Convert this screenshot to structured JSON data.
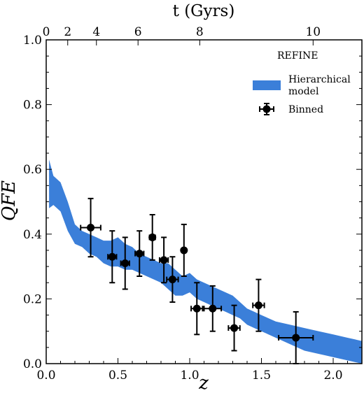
{
  "chart_data": {
    "type": "scatter",
    "title": "",
    "xlabel": "z",
    "ylabel": "QFE",
    "top_xlabel": "t (Gyrs)",
    "xlim": [
      0.0,
      2.2
    ],
    "ylim": [
      0.0,
      1.0
    ],
    "x_ticks": [
      "0.0",
      "0.5",
      "1.0",
      "1.5",
      "2.0"
    ],
    "x_tick_values": [
      0.0,
      0.5,
      1.0,
      1.5,
      2.0
    ],
    "y_ticks": [
      "0.0",
      "0.2",
      "0.4",
      "0.6",
      "0.8",
      "1.0"
    ],
    "y_tick_values": [
      0.0,
      0.2,
      0.4,
      0.6,
      0.8,
      1.0
    ],
    "top_ticks": [
      {
        "label": "0",
        "z": 0.0
      },
      {
        "label": "2",
        "z": 0.15
      },
      {
        "label": "4",
        "z": 0.35
      },
      {
        "label": "6",
        "z": 0.64
      },
      {
        "label": "8",
        "z": 1.07
      },
      {
        "label": "10",
        "z": 1.86
      }
    ],
    "legend": {
      "title": "REFINE",
      "placement": "top-right",
      "entries": [
        "Hierarchical model",
        "Binned"
      ]
    },
    "series": [
      {
        "name": "Hierarchical model",
        "kind": "band",
        "color": "#3b7fd9",
        "x": [
          0.02,
          0.05,
          0.1,
          0.15,
          0.2,
          0.25,
          0.3,
          0.35,
          0.4,
          0.45,
          0.5,
          0.55,
          0.6,
          0.65,
          0.7,
          0.75,
          0.8,
          0.85,
          0.9,
          0.95,
          1.0,
          1.05,
          1.1,
          1.15,
          1.2,
          1.25,
          1.3,
          1.35,
          1.4,
          1.45,
          1.5,
          1.6,
          1.7,
          1.8,
          1.9,
          2.0,
          2.1,
          2.2
        ],
        "lower": [
          0.48,
          0.49,
          0.47,
          0.41,
          0.37,
          0.36,
          0.34,
          0.33,
          0.31,
          0.3,
          0.3,
          0.29,
          0.29,
          0.28,
          0.27,
          0.26,
          0.25,
          0.23,
          0.21,
          0.21,
          0.22,
          0.2,
          0.19,
          0.18,
          0.17,
          0.16,
          0.15,
          0.14,
          0.12,
          0.11,
          0.1,
          0.08,
          0.06,
          0.04,
          0.03,
          0.02,
          0.01,
          0.0
        ],
        "upper": [
          0.63,
          0.58,
          0.56,
          0.5,
          0.43,
          0.41,
          0.4,
          0.39,
          0.38,
          0.38,
          0.39,
          0.37,
          0.36,
          0.34,
          0.33,
          0.32,
          0.31,
          0.31,
          0.29,
          0.27,
          0.28,
          0.26,
          0.25,
          0.24,
          0.23,
          0.22,
          0.21,
          0.19,
          0.17,
          0.16,
          0.15,
          0.13,
          0.12,
          0.11,
          0.1,
          0.09,
          0.08,
          0.07
        ]
      },
      {
        "name": "Binned",
        "kind": "errorbar",
        "color": "#000000",
        "points": [
          {
            "x": 0.31,
            "y": 0.42,
            "xerr": 0.07,
            "yerr": 0.09
          },
          {
            "x": 0.46,
            "y": 0.33,
            "xerr": 0.03,
            "yerr": 0.08
          },
          {
            "x": 0.55,
            "y": 0.31,
            "xerr": 0.03,
            "yerr": 0.08
          },
          {
            "x": 0.65,
            "y": 0.34,
            "xerr": 0.03,
            "yerr": 0.07
          },
          {
            "x": 0.74,
            "y": 0.39,
            "xerr": 0.02,
            "yerr": 0.07
          },
          {
            "x": 0.82,
            "y": 0.32,
            "xerr": 0.03,
            "yerr": 0.07
          },
          {
            "x": 0.88,
            "y": 0.26,
            "xerr": 0.04,
            "yerr": 0.07
          },
          {
            "x": 0.96,
            "y": 0.35,
            "xerr": 0.0,
            "yerr": 0.08
          },
          {
            "x": 1.05,
            "y": 0.17,
            "xerr": 0.04,
            "yerr": 0.08
          },
          {
            "x": 1.16,
            "y": 0.17,
            "xerr": 0.06,
            "yerr": 0.07
          },
          {
            "x": 1.31,
            "y": 0.11,
            "xerr": 0.04,
            "yerr": 0.07
          },
          {
            "x": 1.48,
            "y": 0.18,
            "xerr": 0.04,
            "yerr": 0.08
          },
          {
            "x": 1.74,
            "y": 0.08,
            "xerr": 0.12,
            "yerr": 0.08
          }
        ]
      }
    ]
  }
}
